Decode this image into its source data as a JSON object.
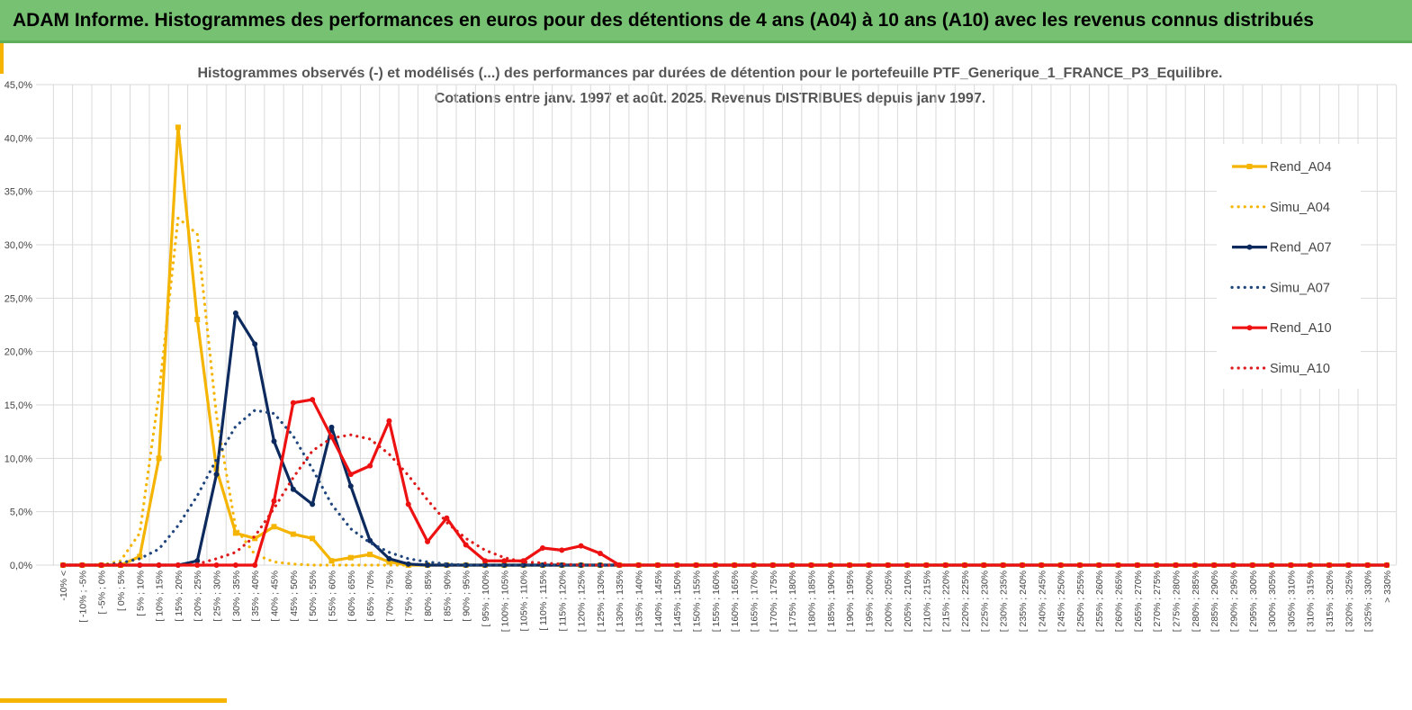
{
  "header": {
    "title": "ADAM Informe. Histogrammes des performances en euros pour des détentions de 4 ans (A04) à 10 ans (A10) avec les revenus connus distribués"
  },
  "colors": {
    "banner": "#77c272",
    "accent": "#f5b400",
    "a04": "#f5b400",
    "a07": "#0d2a5e",
    "a10": "#ee1111",
    "simu_a07": "#20467e",
    "simu_a10": "#dd1b1b",
    "grid": "#d9d9d9"
  },
  "chart_data": {
    "type": "line",
    "title": [
      "Histogrammes observés (-) et modélisés (...) des performances par durées de détention pour le portefeuille PTF_Generique_1_FRANCE_P3_Equilibre.",
      "Cotations entre janv. 1997 et août. 2025. Revenus DISTRIBUES depuis janv 1997."
    ],
    "ylim": [
      0,
      45
    ],
    "yticks": [
      "0,0%",
      "5,0%",
      "10,0%",
      "15,0%",
      "20,0%",
      "25,0%",
      "30,0%",
      "35,0%",
      "40,0%",
      "45,0%"
    ],
    "grid": true,
    "legend_position": "right",
    "categories": [
      "-10% <",
      "[ -10% ; -5%",
      "[ -5% ; 0%",
      "[ 0% ; 5%",
      "[ 5% ; 10%",
      "[ 10% ; 15%",
      "[ 15% ; 20%",
      "[ 20% ; 25%",
      "[ 25% ; 30%",
      "[ 30% ; 35%",
      "[ 35% ; 40%",
      "[ 40% ; 45%",
      "[ 45% ; 50%",
      "[ 50% ; 55%",
      "[ 55% ; 60%",
      "[ 60% ; 65%",
      "[ 65% ; 70%",
      "[ 70% ; 75%",
      "[ 75% ; 80%",
      "[ 80% ; 85%",
      "[ 85% ; 90%",
      "[ 90% ; 95%",
      "[ 95% ; 100%",
      "[ 100% ; 105%",
      "[ 105% ; 110%",
      "[ 110% ; 115%",
      "[ 115% ; 120%",
      "[ 120% ; 125%",
      "[ 125% ; 130%",
      "[ 130% ; 135%",
      "[ 135% ; 140%",
      "[ 140% ; 145%",
      "[ 145% ; 150%",
      "[ 150% ; 155%",
      "[ 155% ; 160%",
      "[ 160% ; 165%",
      "[ 165% ; 170%",
      "[ 170% ; 175%",
      "[ 175% ; 180%",
      "[ 180% ; 185%",
      "[ 185% ; 190%",
      "[ 190% ; 195%",
      "[ 195% ; 200%",
      "[ 200% ; 205%",
      "[ 205% ; 210%",
      "[ 210% ; 215%",
      "[ 215% ; 220%",
      "[ 220% ; 225%",
      "[ 225% ; 230%",
      "[ 230% ; 235%",
      "[ 235% ; 240%",
      "[ 240% ; 245%",
      "[ 245% ; 250%",
      "[ 250% ; 255%",
      "[ 255% ; 260%",
      "[ 260% ; 265%",
      "[ 265% ; 270%",
      "[ 270% ; 275%",
      "[ 275% ; 280%",
      "[ 280% ; 285%",
      "[ 285% ; 290%",
      "[ 290% ; 295%",
      "[ 295% ; 300%",
      "[ 300% ; 305%",
      "[ 305% ; 310%",
      "[ 310% ; 315%",
      "[ 315% ; 320%",
      "[ 320% ; 325%",
      "[ 325% ; 330%",
      "> 330%"
    ],
    "series": [
      {
        "name": "Rend_A04",
        "style": "solid",
        "color": "#f5b400",
        "values": [
          0,
          0,
          0,
          0,
          0.8,
          10.0,
          41.0,
          23.0,
          9.0,
          3.0,
          2.5,
          3.6,
          2.9,
          2.5,
          0.4,
          0.7,
          1.0,
          0.3,
          0,
          0,
          0,
          0,
          0,
          0,
          0,
          0,
          0,
          0,
          0,
          0,
          0,
          0,
          0,
          0,
          0,
          0,
          0,
          0,
          0,
          0,
          0,
          0,
          0,
          0,
          0,
          0,
          0,
          0,
          0,
          0,
          0,
          0,
          0,
          0,
          0,
          0,
          0,
          0,
          0,
          0,
          0,
          0,
          0,
          0,
          0,
          0,
          0,
          0,
          0,
          0
        ]
      },
      {
        "name": "Simu_A04",
        "style": "dotted",
        "color": "#f5b400",
        "values": [
          0,
          0,
          0,
          0.4,
          3.0,
          16.0,
          32.5,
          31.0,
          14.0,
          3.5,
          1.0,
          0.3,
          0.1,
          0,
          0,
          0,
          0,
          0,
          0,
          0,
          0,
          0,
          0,
          0,
          0,
          0,
          0,
          0,
          0,
          0,
          0,
          0,
          0,
          0,
          0,
          0,
          0,
          0,
          0,
          0,
          0,
          0,
          0,
          0,
          0,
          0,
          0,
          0,
          0,
          0,
          0,
          0,
          0,
          0,
          0,
          0,
          0,
          0,
          0,
          0,
          0,
          0,
          0,
          0,
          0,
          0,
          0,
          0,
          0,
          0
        ]
      },
      {
        "name": "Rend_A07",
        "style": "solid",
        "color": "#0d2a5e",
        "values": [
          0,
          0,
          0,
          0,
          0,
          0,
          0,
          0.4,
          8.5,
          23.6,
          20.7,
          11.6,
          7.1,
          5.7,
          12.9,
          7.4,
          2.3,
          0.6,
          0.1,
          0,
          0,
          0,
          0,
          0,
          0,
          0,
          0,
          0,
          0,
          0,
          0,
          0,
          0,
          0,
          0,
          0,
          0,
          0,
          0,
          0,
          0,
          0,
          0,
          0,
          0,
          0,
          0,
          0,
          0,
          0,
          0,
          0,
          0,
          0,
          0,
          0,
          0,
          0,
          0,
          0,
          0,
          0,
          0,
          0,
          0,
          0,
          0,
          0,
          0,
          0
        ]
      },
      {
        "name": "Simu_A07",
        "style": "dotted",
        "color": "#20467e",
        "values": [
          0,
          0,
          0,
          0.2,
          0.6,
          1.5,
          3.7,
          6.5,
          9.9,
          13.0,
          14.5,
          14.2,
          12.1,
          9.0,
          5.7,
          3.4,
          2.1,
          1.2,
          0.6,
          0.3,
          0.1,
          0,
          0,
          0,
          0,
          0,
          0,
          0,
          0,
          0,
          0,
          0,
          0,
          0,
          0,
          0,
          0,
          0,
          0,
          0,
          0,
          0,
          0,
          0,
          0,
          0,
          0,
          0,
          0,
          0,
          0,
          0,
          0,
          0,
          0,
          0,
          0,
          0,
          0,
          0,
          0,
          0,
          0,
          0,
          0,
          0,
          0,
          0,
          0,
          0
        ]
      },
      {
        "name": "Rend_A10",
        "style": "solid",
        "color": "#ee1111",
        "values": [
          0,
          0,
          0,
          0,
          0,
          0,
          0,
          0,
          0,
          0,
          0,
          6.0,
          15.2,
          15.5,
          12.0,
          8.5,
          9.3,
          13.5,
          5.7,
          2.2,
          4.4,
          1.9,
          0.4,
          0.4,
          0.4,
          1.6,
          1.4,
          1.8,
          1.1,
          0,
          0,
          0,
          0,
          0,
          0,
          0,
          0,
          0,
          0,
          0,
          0,
          0,
          0,
          0,
          0,
          0,
          0,
          0,
          0,
          0,
          0,
          0,
          0,
          0,
          0,
          0,
          0,
          0,
          0,
          0,
          0,
          0,
          0,
          0,
          0,
          0,
          0,
          0,
          0,
          0
        ]
      },
      {
        "name": "Simu_A10",
        "style": "dotted",
        "color": "#dd1b1b",
        "values": [
          0,
          0,
          0,
          0,
          0,
          0,
          0,
          0.1,
          0.6,
          1.2,
          2.7,
          5.3,
          8.2,
          10.7,
          11.9,
          12.2,
          11.8,
          10.4,
          8.4,
          6.1,
          4.0,
          2.5,
          1.4,
          0.7,
          0.3,
          0.2,
          0.1,
          0,
          0,
          0,
          0,
          0,
          0,
          0,
          0,
          0,
          0,
          0,
          0,
          0,
          0,
          0,
          0,
          0,
          0,
          0,
          0,
          0,
          0,
          0,
          0,
          0,
          0,
          0,
          0,
          0,
          0,
          0,
          0,
          0,
          0,
          0,
          0,
          0,
          0,
          0,
          0,
          0,
          0,
          0
        ]
      }
    ]
  }
}
